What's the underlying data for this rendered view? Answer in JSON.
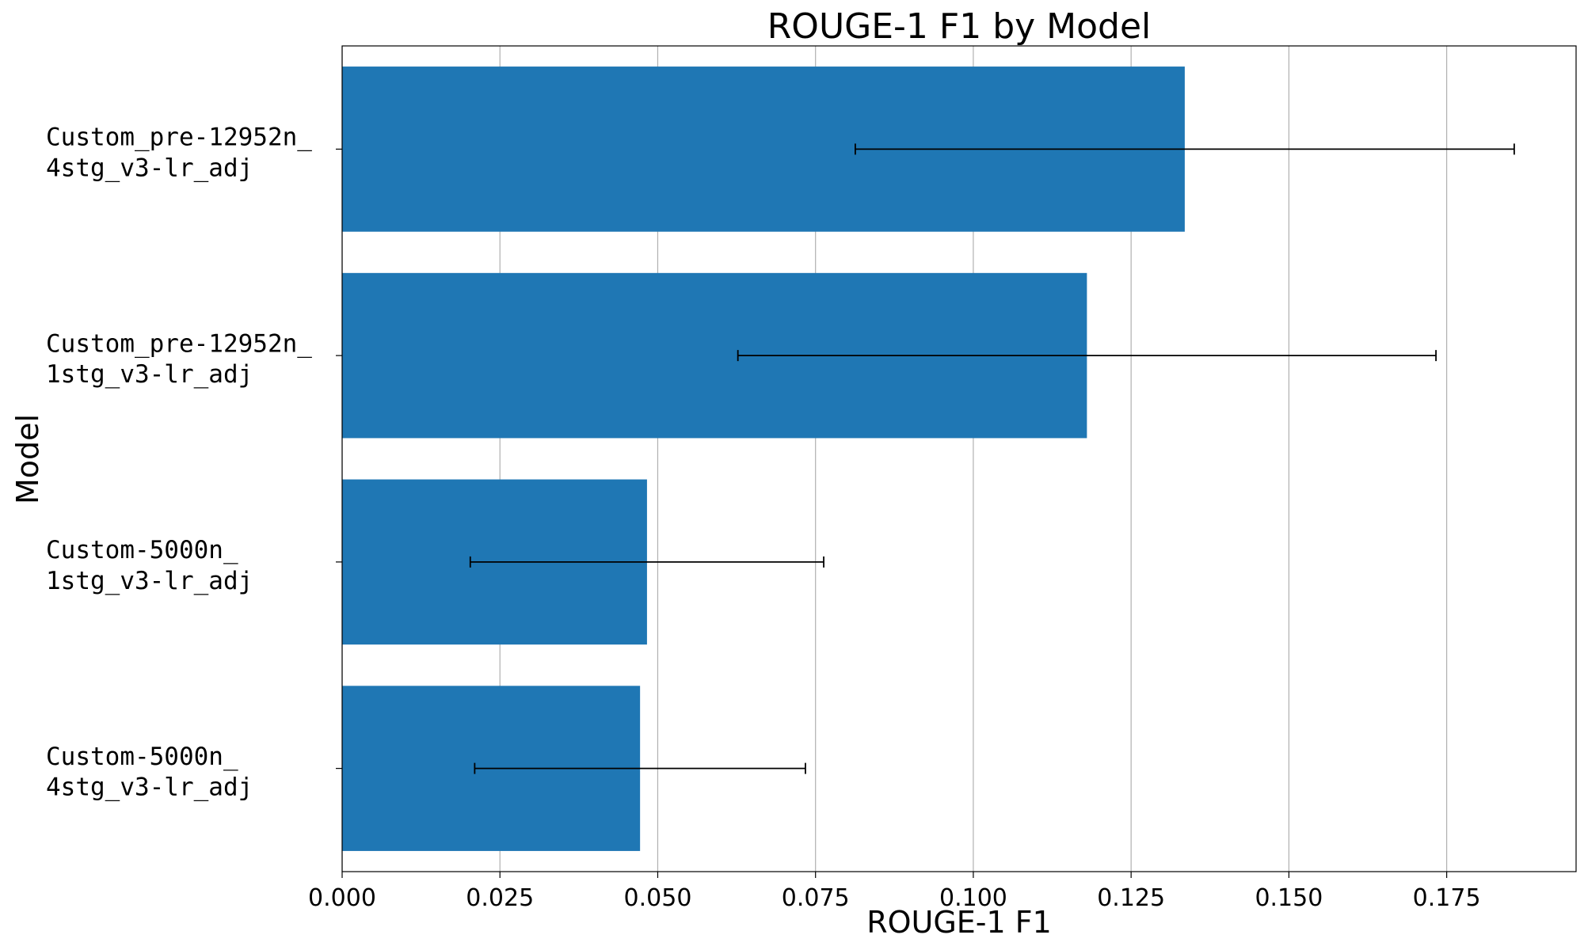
{
  "chart_data": {
    "type": "bar",
    "orientation": "horizontal",
    "title": "ROUGE-1 F1 by Model",
    "xlabel": "ROUGE-1 F1",
    "ylabel": "Model",
    "xlim": [
      0,
      0.1955
    ],
    "xticks": [
      0.0,
      0.025,
      0.05,
      0.075,
      0.1,
      0.125,
      0.15,
      0.175
    ],
    "xtick_labels": [
      "0.000",
      "0.025",
      "0.050",
      "0.075",
      "0.100",
      "0.125",
      "0.150",
      "0.175"
    ],
    "grid": "x",
    "bar_color": "#1f77b4",
    "categories": [
      [
        "Custom_pre-12952n_",
        "4stg_v3-lr_adj"
      ],
      [
        "Custom_pre-12952n_",
        "1stg_v3-lr_adj"
      ],
      [
        "Custom-5000n_",
        "1stg_v3-lr_adj"
      ],
      [
        "Custom-5000n_",
        "4stg_v3-lr_adj"
      ]
    ],
    "values": [
      0.1335,
      0.118,
      0.0483,
      0.0472
    ],
    "errors": [
      0.0522,
      0.0553,
      0.028,
      0.0262
    ]
  }
}
